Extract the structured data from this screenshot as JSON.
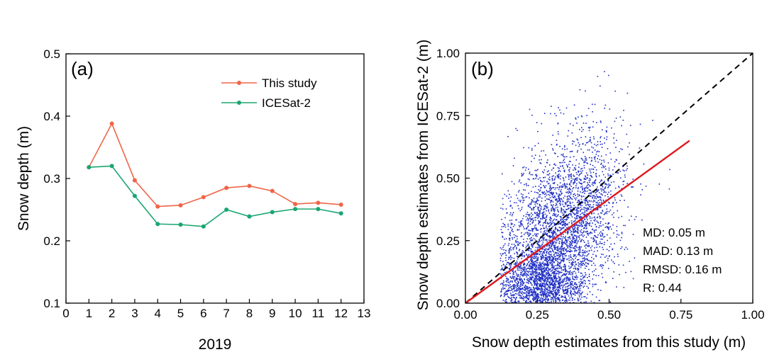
{
  "chart_data": [
    {
      "type": "line",
      "panel_label": "(a)",
      "title": "",
      "xlabel": "2019",
      "ylabel": "Snow depth (m)",
      "xlim": [
        0,
        13
      ],
      "ylim": [
        0.1,
        0.5
      ],
      "xticks": [
        "0",
        "1",
        "2",
        "3",
        "4",
        "5",
        "6",
        "7",
        "8",
        "9",
        "10",
        "11",
        "12",
        "13"
      ],
      "yticks": [
        "0.1",
        "0.2",
        "0.3",
        "0.4",
        "0.5"
      ],
      "grid": false,
      "legend_position": "top-right",
      "x": [
        1,
        2,
        3,
        4,
        5,
        6,
        7,
        8,
        9,
        10,
        11,
        12
      ],
      "series": [
        {
          "name": "This study",
          "color": "#ef6548",
          "values": [
            0.318,
            0.388,
            0.297,
            0.255,
            0.257,
            0.27,
            0.285,
            0.288,
            0.28,
            0.259,
            0.261,
            0.258
          ]
        },
        {
          "name": "ICESat-2",
          "color": "#1aa672",
          "values": [
            0.318,
            0.32,
            0.272,
            0.227,
            0.226,
            0.223,
            0.25,
            0.239,
            0.246,
            0.251,
            0.251,
            0.244
          ]
        }
      ]
    },
    {
      "type": "scatter",
      "panel_label": "(b)",
      "title": "",
      "xlabel": "Snow depth estimates from this study (m)",
      "ylabel": "Snow depth estimates from ICESat-2 (m)",
      "xlim": [
        0,
        1
      ],
      "ylim": [
        0,
        1
      ],
      "xticks": [
        "0.00",
        "0.25",
        "0.50",
        "0.75",
        "1.00"
      ],
      "yticks": [
        "0.00",
        "0.25",
        "0.50",
        "0.75",
        "1.00"
      ],
      "grid": false,
      "point_color": "#1f2fc4",
      "one_to_one_line": {
        "x": [
          0,
          1
        ],
        "y": [
          0,
          1
        ],
        "style": "dashed",
        "color": "#000000"
      },
      "regression_line": {
        "x": [
          0,
          0.78
        ],
        "y": [
          0,
          0.65
        ],
        "color": "#e0161c"
      },
      "stats": [
        "MD: 0.05 m",
        "MAD: 0.13 m",
        "RMSD: 0.16 m",
        "R: 0.44"
      ]
    }
  ]
}
